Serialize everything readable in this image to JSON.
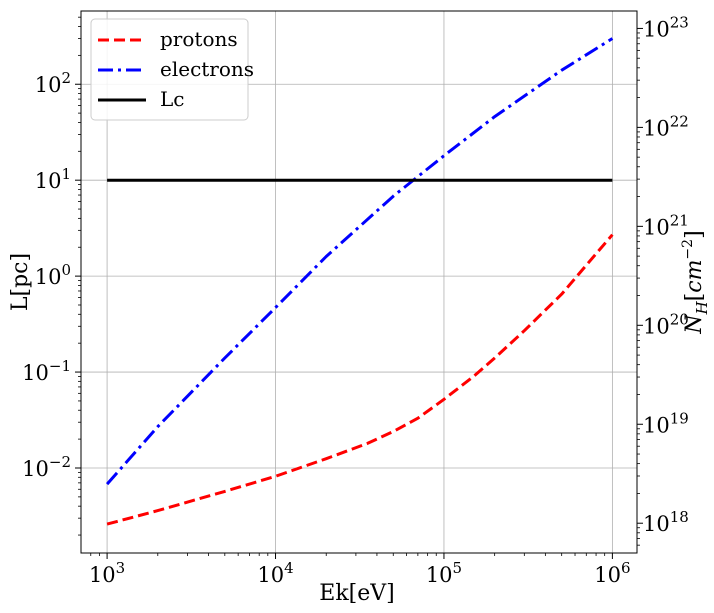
{
  "chart_data": {
    "type": "line",
    "xlabel": "Ek[eV]",
    "ylabel": "L[pc]",
    "y2label_base": "N",
    "y2label_sub": "H",
    "y2label_bracket_open": "[",
    "y2label_unit": "cm",
    "y2label_exp": "−2",
    "y2label_bracket_close": "]",
    "xscale": "log",
    "yscale": "log",
    "xlim": [
      700,
      1400000
    ],
    "ylim": [
      0.0013,
      580
    ],
    "y2lim": [
      5e+17,
      1.5e+23
    ],
    "grid": true,
    "legend_loc": "upper left",
    "x_ticks": [
      {
        "value": 1000,
        "base": "10",
        "exp": "3"
      },
      {
        "value": 10000,
        "base": "10",
        "exp": "4"
      },
      {
        "value": 100000,
        "base": "10",
        "exp": "5"
      },
      {
        "value": 1000000,
        "base": "10",
        "exp": "6"
      }
    ],
    "y_ticks": [
      {
        "value": 0.01,
        "base": "10",
        "exp": "−2"
      },
      {
        "value": 0.1,
        "base": "10",
        "exp": "−1"
      },
      {
        "value": 1,
        "base": "10",
        "exp": "0"
      },
      {
        "value": 10,
        "base": "10",
        "exp": "1"
      },
      {
        "value": 100,
        "base": "10",
        "exp": "2"
      }
    ],
    "y2_ticks": [
      {
        "value": 1e+18,
        "base": "10",
        "exp": "18"
      },
      {
        "value": 1e+19,
        "base": "10",
        "exp": "19"
      },
      {
        "value": 1e+20,
        "base": "10",
        "exp": "20"
      },
      {
        "value": 1e+21,
        "base": "10",
        "exp": "21"
      },
      {
        "value": 1e+22,
        "base": "10",
        "exp": "22"
      },
      {
        "value": 1e+23,
        "base": "10",
        "exp": "23"
      }
    ],
    "series": [
      {
        "name": "protons",
        "color": "#ff0000",
        "style": "dashed",
        "x": [
          1000,
          2000,
          5000,
          10000,
          20000,
          35000,
          50000,
          70000,
          100000,
          150000,
          200000,
          300000,
          500000,
          700000,
          1000000
        ],
        "y": [
          0.0026,
          0.0036,
          0.0057,
          0.0082,
          0.0125,
          0.018,
          0.024,
          0.033,
          0.052,
          0.09,
          0.14,
          0.27,
          0.65,
          1.3,
          2.7
        ]
      },
      {
        "name": "electrons",
        "color": "#0000ff",
        "style": "dashdot",
        "x": [
          1000,
          2000,
          5000,
          10000,
          20000,
          50000,
          100000,
          200000,
          500000,
          1000000
        ],
        "y": [
          0.0068,
          0.027,
          0.14,
          0.47,
          1.6,
          6.8,
          18,
          46,
          140,
          300
        ]
      },
      {
        "name": "Lc",
        "color": "#000000",
        "style": "solid",
        "x": [
          1000,
          1000000
        ],
        "y": [
          10,
          10
        ]
      }
    ]
  }
}
